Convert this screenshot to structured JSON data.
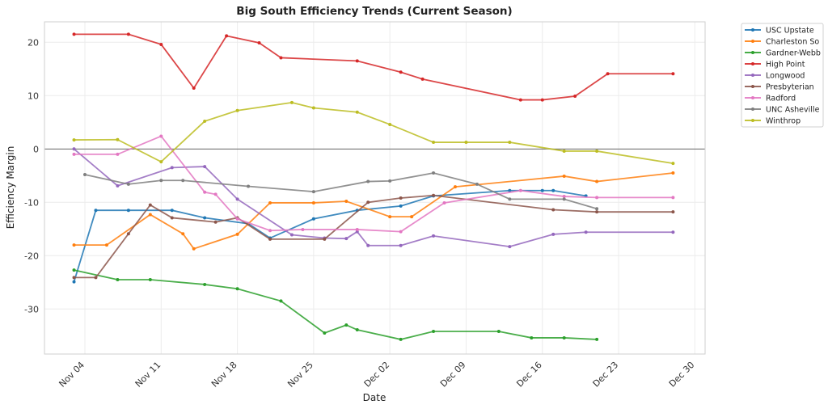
{
  "chart_data": {
    "type": "line",
    "title": "Big South Efficiency Trends (Current Season)",
    "xlabel": "Date",
    "ylabel": "Efficiency Margin",
    "xlim": [
      "10-31",
      "12-31"
    ],
    "ylim": [
      -38.4,
      26.1
    ],
    "yticks": [
      -30,
      -20,
      -10,
      0,
      10,
      20
    ],
    "xticks": [
      {
        "date": "11-04",
        "label": "Nov 04"
      },
      {
        "date": "11-11",
        "label": "Nov 11"
      },
      {
        "date": "11-18",
        "label": "Nov 18"
      },
      {
        "date": "11-25",
        "label": "Nov 25"
      },
      {
        "date": "12-02",
        "label": "Dec 02"
      },
      {
        "date": "12-09",
        "label": "Dec 09"
      },
      {
        "date": "12-16",
        "label": "Dec 16"
      },
      {
        "date": "12-23",
        "label": "Dec 23"
      },
      {
        "date": "12-30",
        "label": "Dec 30"
      }
    ],
    "grid": true,
    "zero_line": true,
    "legend_placement": "outside-top-right",
    "series": [
      {
        "name": "USC Upstate",
        "color": "#1f77b4",
        "points": [
          [
            "11-03",
            -24.9
          ],
          [
            "11-05",
            -11.5
          ],
          [
            "11-08",
            -11.5
          ],
          [
            "11-12",
            -11.5
          ],
          [
            "11-15",
            -12.9
          ],
          [
            "11-19",
            -14.0
          ],
          [
            "11-21",
            -16.7
          ],
          [
            "11-25",
            -13.1
          ],
          [
            "11-29",
            -11.5
          ],
          [
            "12-03",
            -10.7
          ],
          [
            "12-06",
            -8.8
          ],
          [
            "12-13",
            -7.8
          ],
          [
            "12-16",
            -7.8
          ],
          [
            "12-17",
            -7.8
          ],
          [
            "12-20",
            -8.8
          ]
        ]
      },
      {
        "name": "Charleston So",
        "color": "#ff7f0e",
        "points": [
          [
            "11-03",
            -18.0
          ],
          [
            "11-06",
            -18.0
          ],
          [
            "11-10",
            -12.3
          ],
          [
            "11-13",
            -15.9
          ],
          [
            "11-14",
            -18.7
          ],
          [
            "11-18",
            -16.0
          ],
          [
            "11-21",
            -10.1
          ],
          [
            "11-25",
            -10.1
          ],
          [
            "11-28",
            -9.8
          ],
          [
            "12-02",
            -12.7
          ],
          [
            "12-04",
            -12.7
          ],
          [
            "12-08",
            -7.1
          ],
          [
            "12-18",
            -5.1
          ],
          [
            "12-21",
            -6.1
          ],
          [
            "12-28",
            -4.5
          ]
        ]
      },
      {
        "name": "Gardner-Webb",
        "color": "#2ca02c",
        "points": [
          [
            "11-03",
            -22.7
          ],
          [
            "11-07",
            -24.5
          ],
          [
            "11-10",
            -24.5
          ],
          [
            "11-15",
            -25.4
          ],
          [
            "11-18",
            -26.2
          ],
          [
            "11-22",
            -28.5
          ],
          [
            "11-26",
            -34.5
          ],
          [
            "11-28",
            -33.0
          ],
          [
            "11-29",
            -33.9
          ],
          [
            "12-03",
            -35.7
          ],
          [
            "12-06",
            -34.2
          ],
          [
            "12-12",
            -34.2
          ],
          [
            "12-15",
            -35.4
          ],
          [
            "12-18",
            -35.4
          ],
          [
            "12-21",
            -35.7
          ]
        ]
      },
      {
        "name": "High Point",
        "color": "#d62728",
        "points": [
          [
            "11-03",
            21.5
          ],
          [
            "11-08",
            21.5
          ],
          [
            "11-11",
            19.6
          ],
          [
            "11-14",
            11.4
          ],
          [
            "11-17",
            21.2
          ],
          [
            "11-20",
            19.9
          ],
          [
            "11-22",
            17.1
          ],
          [
            "11-29",
            16.5
          ],
          [
            "12-03",
            14.4
          ],
          [
            "12-05",
            13.1
          ],
          [
            "12-14",
            9.2
          ],
          [
            "12-16",
            9.2
          ],
          [
            "12-19",
            9.9
          ],
          [
            "12-22",
            14.1
          ],
          [
            "12-28",
            14.1
          ]
        ]
      },
      {
        "name": "Longwood",
        "color": "#9467bd",
        "points": [
          [
            "11-03",
            0.0
          ],
          [
            "11-07",
            -6.9
          ],
          [
            "11-12",
            -3.5
          ],
          [
            "11-15",
            -3.3
          ],
          [
            "11-18",
            -9.4
          ],
          [
            "11-23",
            -16.1
          ],
          [
            "11-26",
            -16.7
          ],
          [
            "11-28",
            -16.8
          ],
          [
            "11-29",
            -15.5
          ],
          [
            "11-30",
            -18.1
          ],
          [
            "12-03",
            -18.1
          ],
          [
            "12-06",
            -16.3
          ],
          [
            "12-13",
            -18.3
          ],
          [
            "12-17",
            -16.0
          ],
          [
            "12-20",
            -15.6
          ],
          [
            "12-28",
            -15.6
          ]
        ]
      },
      {
        "name": "Presbyterian",
        "color": "#8c564b",
        "points": [
          [
            "11-03",
            -24.1
          ],
          [
            "11-05",
            -24.1
          ],
          [
            "11-08",
            -15.9
          ],
          [
            "11-10",
            -10.5
          ],
          [
            "11-12",
            -12.9
          ],
          [
            "11-16",
            -13.7
          ],
          [
            "11-18",
            -12.9
          ],
          [
            "11-21",
            -16.9
          ],
          [
            "11-26",
            -16.9
          ],
          [
            "11-30",
            -10.0
          ],
          [
            "12-03",
            -9.2
          ],
          [
            "12-06",
            -8.7
          ],
          [
            "12-17",
            -11.4
          ],
          [
            "12-21",
            -11.8
          ],
          [
            "12-28",
            -11.8
          ]
        ]
      },
      {
        "name": "Radford",
        "color": "#e377c2",
        "points": [
          [
            "11-03",
            -1.0
          ],
          [
            "11-07",
            -1.0
          ],
          [
            "11-11",
            2.4
          ],
          [
            "11-15",
            -8.1
          ],
          [
            "11-16",
            -8.5
          ],
          [
            "11-18",
            -13.1
          ],
          [
            "11-21",
            -15.3
          ],
          [
            "11-24",
            -15.1
          ],
          [
            "11-29",
            -15.1
          ],
          [
            "12-03",
            -15.5
          ],
          [
            "12-07",
            -10.1
          ],
          [
            "12-14",
            -7.8
          ],
          [
            "12-18",
            -8.9
          ],
          [
            "12-21",
            -9.1
          ],
          [
            "12-28",
            -9.1
          ]
        ]
      },
      {
        "name": "UNC Asheville",
        "color": "#7f7f7f",
        "points": [
          [
            "11-04",
            -4.8
          ],
          [
            "11-08",
            -6.6
          ],
          [
            "11-11",
            -5.9
          ],
          [
            "11-13",
            -5.9
          ],
          [
            "11-19",
            -7.0
          ],
          [
            "11-25",
            -8.0
          ],
          [
            "11-30",
            -6.1
          ],
          [
            "12-02",
            -6.0
          ],
          [
            "12-06",
            -4.5
          ],
          [
            "12-10",
            -6.6
          ],
          [
            "12-13",
            -9.4
          ],
          [
            "12-18",
            -9.4
          ],
          [
            "12-21",
            -11.2
          ]
        ]
      },
      {
        "name": "Winthrop",
        "color": "#bcbd22",
        "points": [
          [
            "11-03",
            1.7
          ],
          [
            "11-07",
            1.75
          ],
          [
            "11-11",
            -2.4
          ],
          [
            "11-15",
            5.2
          ],
          [
            "11-18",
            7.2
          ],
          [
            "11-23",
            8.7
          ],
          [
            "11-25",
            7.7
          ],
          [
            "11-29",
            6.9
          ],
          [
            "12-02",
            4.6
          ],
          [
            "12-06",
            1.25
          ],
          [
            "12-09",
            1.25
          ],
          [
            "12-13",
            1.25
          ],
          [
            "12-18",
            -0.4
          ],
          [
            "12-21",
            -0.4
          ],
          [
            "12-28",
            -2.7
          ]
        ]
      }
    ]
  }
}
